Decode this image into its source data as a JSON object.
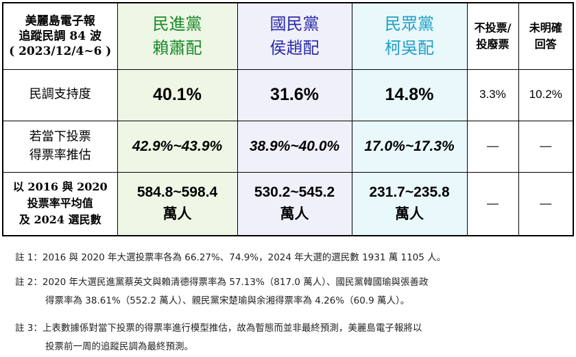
{
  "header": {
    "title": [
      "美麗島電子報",
      "追蹤民調 84 波",
      "( 2023/12/4~6 )"
    ],
    "columns": [
      [
        "民進黨",
        "賴蕭配"
      ],
      [
        "國民黨",
        "侯趙配"
      ],
      [
        "民眾黨",
        "柯吳配"
      ],
      [
        "不投票/",
        "投廢票"
      ],
      [
        "未明確",
        "回答"
      ]
    ]
  },
  "rows": [
    {
      "label": [
        "民調支持度"
      ],
      "cells": [
        [
          "40.1%"
        ],
        [
          "31.6%"
        ],
        [
          "14.8%"
        ],
        [
          "3.3%"
        ],
        [
          "10.2%"
        ]
      ]
    },
    {
      "label": [
        "若當下投票",
        "得票率推估"
      ],
      "cells": [
        [
          "42.9%~43.9%"
        ],
        [
          "38.9%~40.0%"
        ],
        [
          "17.0%~17.3%"
        ],
        [
          "—"
        ],
        [
          "—"
        ]
      ]
    },
    {
      "label": [
        "以 2016 與 2020",
        "投票率平均值",
        "及 2024 選民數"
      ],
      "cells": [
        [
          "584.8~598.4",
          "萬人"
        ],
        [
          "530.2~545.2",
          "萬人"
        ],
        [
          "231.7~235.8",
          "萬人"
        ],
        [
          "—"
        ],
        [
          "—"
        ]
      ]
    }
  ],
  "notes": [
    {
      "label": "註 1：",
      "lines": [
        "2016 與 2020 年大選投票率各為 66.27%、74.9%，2024 年大選的選民數 1931 萬 1105 人。"
      ]
    },
    {
      "label": "註 2：",
      "lines": [
        "2020 年大選民進黨蔡英文與賴清德得票率為 57.13%（817.0 萬人）、國民黨韓國瑜與張善政",
        "得票率為 38.61%（552.2 萬人）、親民黨宋楚瑜與余湘得票率為 4.26%（60.9 萬人）。"
      ]
    },
    {
      "label": "註 3：",
      "lines": [
        "上表數據係對當下投票的得票率進行模型推估，故為暫態而並非最終預測，美麗島電子報將以",
        "投票前一周的追蹤民調為最終預測。"
      ]
    }
  ]
}
